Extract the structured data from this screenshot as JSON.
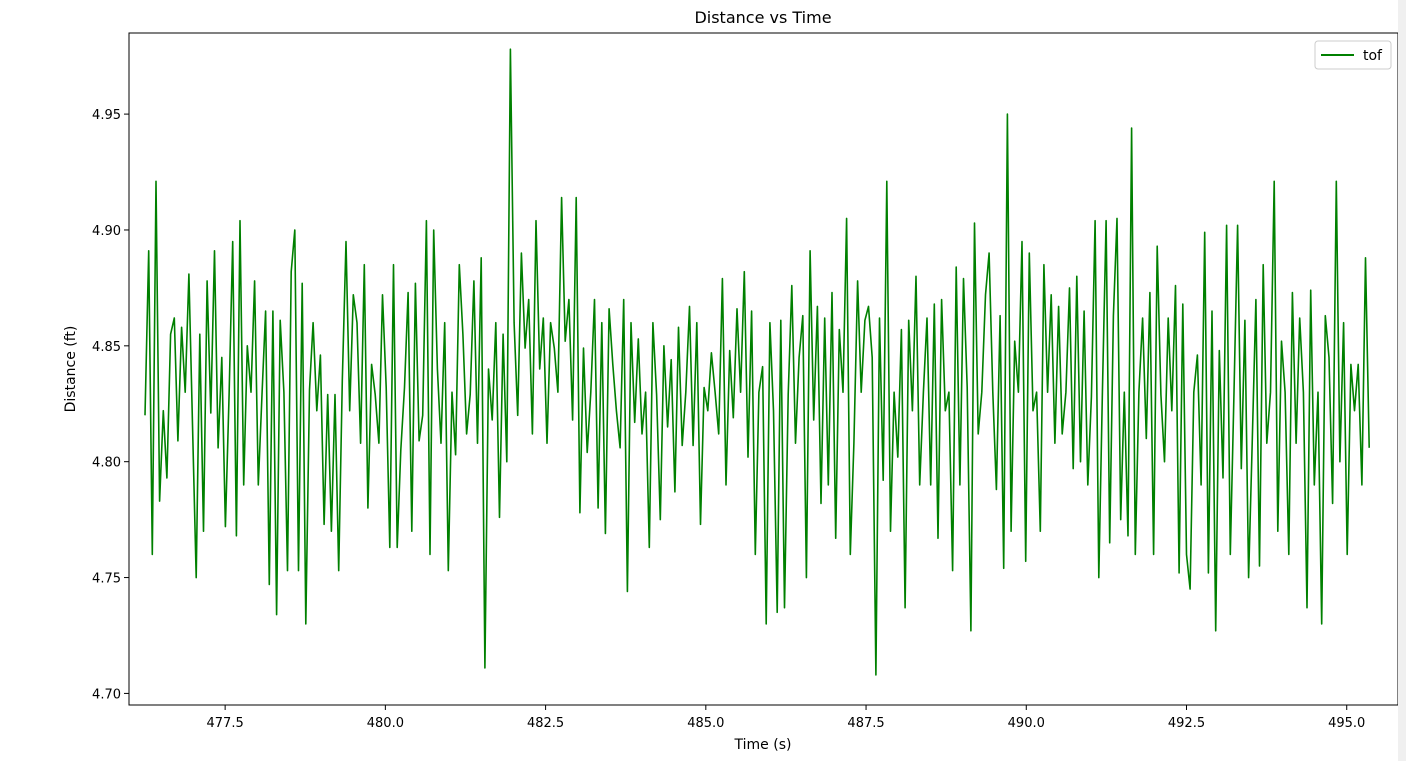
{
  "chart_data": {
    "type": "line",
    "title": "Distance vs Time",
    "xlabel": "Time (s)",
    "ylabel": "Distance (ft)",
    "xlim": [
      476.0,
      495.8
    ],
    "ylim": [
      4.695,
      4.985
    ],
    "xticks": [
      477.5,
      480.0,
      482.5,
      485.0,
      487.5,
      490.0,
      492.5,
      495.0
    ],
    "xtick_labels": [
      "477.5",
      "480.0",
      "482.5",
      "485.0",
      "487.5",
      "490.0",
      "492.5",
      "495.0"
    ],
    "yticks": [
      4.7,
      4.75,
      4.8,
      4.85,
      4.9,
      4.95
    ],
    "ytick_labels": [
      "4.70",
      "4.75",
      "4.80",
      "4.85",
      "4.90",
      "4.95"
    ],
    "legend_position": "top-right",
    "series": [
      {
        "name": "tof",
        "color": "#008000",
        "x_start": 476.25,
        "x_end": 495.35,
        "baseline": 4.825,
        "y_min": 4.708,
        "y_max": 4.978,
        "values": [
          4.82,
          4.891,
          4.76,
          4.921,
          4.783,
          4.822,
          4.793,
          4.855,
          4.862,
          4.809,
          4.858,
          4.83,
          4.881,
          4.816,
          4.75,
          4.855,
          4.77,
          4.878,
          4.821,
          4.891,
          4.806,
          4.845,
          4.772,
          4.829,
          4.895,
          4.768,
          4.904,
          4.79,
          4.85,
          4.83,
          4.878,
          4.79,
          4.829,
          4.865,
          4.747,
          4.865,
          4.734,
          4.861,
          4.83,
          4.753,
          4.882,
          4.9,
          4.753,
          4.877,
          4.73,
          4.831,
          4.86,
          4.822,
          4.846,
          4.773,
          4.829,
          4.77,
          4.829,
          4.753,
          4.835,
          4.895,
          4.822,
          4.872,
          4.86,
          4.808,
          4.885,
          4.78,
          4.842,
          4.829,
          4.808,
          4.872,
          4.832,
          4.763,
          4.885,
          4.763,
          4.805,
          4.832,
          4.873,
          4.77,
          4.877,
          4.809,
          4.82,
          4.904,
          4.76,
          4.9,
          4.84,
          4.808,
          4.86,
          4.753,
          4.83,
          4.803,
          4.885,
          4.855,
          4.812,
          4.829,
          4.878,
          4.808,
          4.888,
          4.711,
          4.84,
          4.818,
          4.86,
          4.776,
          4.855,
          4.8,
          4.978,
          4.86,
          4.82,
          4.89,
          4.849,
          4.87,
          4.812,
          4.904,
          4.84,
          4.862,
          4.808,
          4.86,
          4.849,
          4.83,
          4.914,
          4.852,
          4.87,
          4.818,
          4.914,
          4.778,
          4.849,
          4.804,
          4.83,
          4.87,
          4.78,
          4.86,
          4.769,
          4.866,
          4.842,
          4.822,
          4.806,
          4.87,
          4.744,
          4.86,
          4.817,
          4.853,
          4.812,
          4.83,
          4.763,
          4.86,
          4.829,
          4.775,
          4.85,
          4.815,
          4.844,
          4.787,
          4.858,
          4.807,
          4.83,
          4.867,
          4.807,
          4.86,
          4.773,
          4.832,
          4.822,
          4.847,
          4.83,
          4.812,
          4.879,
          4.79,
          4.848,
          4.819,
          4.866,
          4.83,
          4.882,
          4.802,
          4.865,
          4.76,
          4.83,
          4.841,
          4.73,
          4.86,
          4.822,
          4.735,
          4.861,
          4.737,
          4.829,
          4.876,
          4.808,
          4.845,
          4.863,
          4.75,
          4.891,
          4.818,
          4.867,
          4.782,
          4.862,
          4.79,
          4.873,
          4.767,
          4.857,
          4.83,
          4.905,
          4.76,
          4.808,
          4.878,
          4.83,
          4.861,
          4.867,
          4.845,
          4.708,
          4.862,
          4.792,
          4.921,
          4.77,
          4.83,
          4.802,
          4.857,
          4.737,
          4.861,
          4.822,
          4.88,
          4.79,
          4.83,
          4.862,
          4.79,
          4.868,
          4.767,
          4.87,
          4.822,
          4.83,
          4.753,
          4.884,
          4.79,
          4.879,
          4.832,
          4.727,
          4.903,
          4.812,
          4.83,
          4.872,
          4.89,
          4.83,
          4.788,
          4.863,
          4.754,
          4.95,
          4.77,
          4.852,
          4.83,
          4.895,
          4.757,
          4.89,
          4.822,
          4.83,
          4.77,
          4.885,
          4.83,
          4.872,
          4.808,
          4.867,
          4.812,
          4.83,
          4.875,
          4.797,
          4.88,
          4.8,
          4.865,
          4.79,
          4.828,
          4.904,
          4.75,
          4.83,
          4.904,
          4.765,
          4.863,
          4.905,
          4.775,
          4.83,
          4.768,
          4.944,
          4.76,
          4.83,
          4.862,
          4.81,
          4.873,
          4.76,
          4.893,
          4.829,
          4.8,
          4.862,
          4.822,
          4.876,
          4.752,
          4.868,
          4.76,
          4.745,
          4.83,
          4.846,
          4.79,
          4.899,
          4.752,
          4.865,
          4.727,
          4.848,
          4.793,
          4.902,
          4.76,
          4.83,
          4.902,
          4.797,
          4.861,
          4.75,
          4.808,
          4.87,
          4.755,
          4.885,
          4.808,
          4.83,
          4.921,
          4.77,
          4.852,
          4.83,
          4.76,
          4.873,
          4.808,
          4.862,
          4.83,
          4.737,
          4.874,
          4.79,
          4.83,
          4.73,
          4.863,
          4.845,
          4.782,
          4.921,
          4.8,
          4.86,
          4.76,
          4.842,
          4.822,
          4.842,
          4.79,
          4.888,
          4.806
        ]
      }
    ]
  }
}
